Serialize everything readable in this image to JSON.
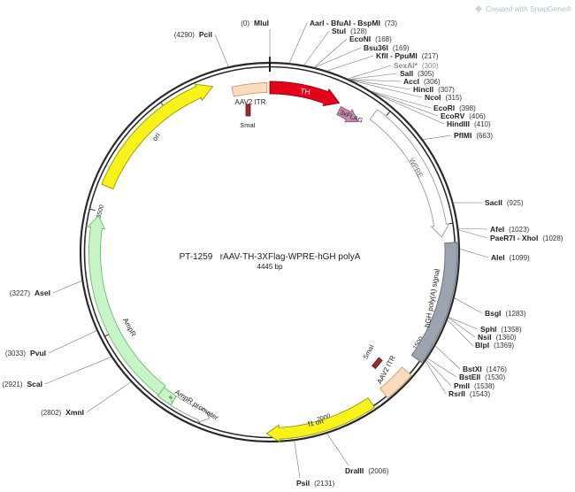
{
  "watermark": "Created with SnapGene®",
  "title": "PT-1259   rAAV-TH-3XFlag-WPRE-hGH polyA",
  "length": {
    "value": 4445,
    "label": "4445 bp"
  },
  "ticks": [
    500,
    1000,
    1500,
    2000,
    2500,
    3000,
    3500,
    4000
  ],
  "sites": [
    {
      "name": "MluI",
      "position": {
        "value": 0,
        "label": "(0)"
      }
    },
    {
      "name": "AarI - BfuAI - BspMI",
      "position": {
        "value": 73,
        "label": "(73)"
      }
    },
    {
      "name": "StuI",
      "position": {
        "value": 128,
        "label": "(128)"
      }
    },
    {
      "name": "EcoNI",
      "position": {
        "value": 168,
        "label": "(168)"
      }
    },
    {
      "name": "Bsu36I",
      "position": {
        "value": 169,
        "label": "(169)"
      }
    },
    {
      "name": "KflI - PpuMI",
      "position": {
        "value": 217,
        "label": "(217)"
      }
    },
    {
      "name": "SexAI*",
      "position": {
        "value": 300,
        "label": "(300)"
      },
      "color": "#8a8a8a"
    },
    {
      "name": "SalI",
      "position": {
        "value": 305,
        "label": "(305)"
      }
    },
    {
      "name": "AccI",
      "position": {
        "value": 306,
        "label": "(306)"
      }
    },
    {
      "name": "HincII",
      "position": {
        "value": 307,
        "label": "(307)"
      }
    },
    {
      "name": "NcoI",
      "position": {
        "value": 315,
        "label": "(315)"
      }
    },
    {
      "name": "EcoRI",
      "position": {
        "value": 398,
        "label": "(398)"
      }
    },
    {
      "name": "EcoRV",
      "position": {
        "value": 406,
        "label": "(406)"
      }
    },
    {
      "name": "HindIII",
      "position": {
        "value": 410,
        "label": "(410)"
      }
    },
    {
      "name": "PflMI",
      "position": {
        "value": 663,
        "label": "(663)"
      }
    },
    {
      "name": "SacII",
      "position": {
        "value": 925,
        "label": "(925)"
      }
    },
    {
      "name": "AfeI",
      "position": {
        "value": 1023,
        "label": "(1023)"
      }
    },
    {
      "name": "PaeR7I - XhoI",
      "position": {
        "value": 1028,
        "label": "(1028)"
      }
    },
    {
      "name": "AleI",
      "position": {
        "value": 1099,
        "label": "(1099)"
      }
    },
    {
      "name": "BsgI",
      "position": {
        "value": 1283,
        "label": "(1283)"
      }
    },
    {
      "name": "SphI",
      "position": {
        "value": 1358,
        "label": "(1358)"
      }
    },
    {
      "name": "NsiI",
      "position": {
        "value": 1360,
        "label": "(1360)"
      }
    },
    {
      "name": "BlpI",
      "position": {
        "value": 1369,
        "label": "(1369)"
      }
    },
    {
      "name": "BstXI",
      "position": {
        "value": 1476,
        "label": "(1476)"
      }
    },
    {
      "name": "BstEII",
      "position": {
        "value": 1530,
        "label": "(1530)"
      }
    },
    {
      "name": "PmlI",
      "position": {
        "value": 1538,
        "label": "(1538)"
      }
    },
    {
      "name": "RsrII",
      "position": {
        "value": 1543,
        "label": "(1543)"
      }
    },
    {
      "name": "DraIII",
      "position": {
        "value": 2006,
        "label": "(2006)"
      }
    },
    {
      "name": "PsiI",
      "position": {
        "value": 2131,
        "label": "(2131)"
      }
    },
    {
      "name": "XmnI",
      "position": {
        "value": 2802,
        "label": "(2802)"
      }
    },
    {
      "name": "ScaI",
      "position": {
        "value": 2921,
        "label": "(2921)"
      }
    },
    {
      "name": "PvuI",
      "position": {
        "value": 3033,
        "label": "(3033)"
      }
    },
    {
      "name": "AseI",
      "position": {
        "value": 3227,
        "label": "(3227)"
      }
    },
    {
      "name": "PciI",
      "position": {
        "value": 4290,
        "label": "(4290)"
      }
    }
  ],
  "features": [
    {
      "label": "AAV2 ITR"
    },
    {
      "label": "TH"
    },
    {
      "label": "3xFLAG"
    },
    {
      "label": "SmaI"
    },
    {
      "label": "WPRE"
    },
    {
      "label": "hGH poly(A) signal"
    },
    {
      "label": "AAV2 ITR"
    },
    {
      "label": "SmaI"
    },
    {
      "label": "f1 ori"
    },
    {
      "label": "AmpR promoter"
    },
    {
      "label": "bl..."
    },
    {
      "label": "AmpR"
    },
    {
      "label": "ori"
    }
  ]
}
